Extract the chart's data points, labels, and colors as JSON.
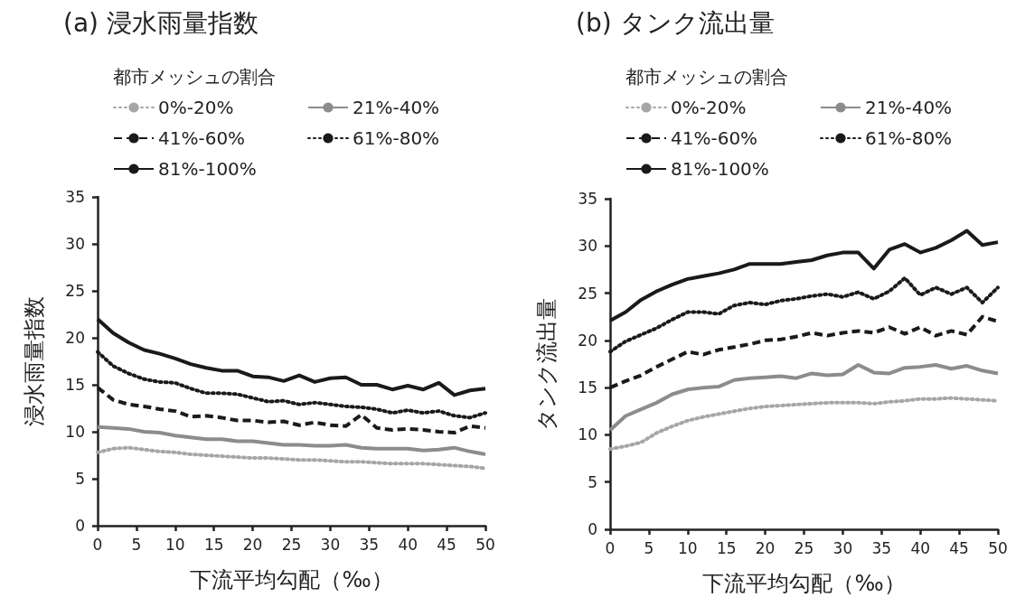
{
  "chart_data": [
    {
      "type": "line",
      "title": "(a) 浸水雨量指数",
      "xlabel": "下流平均勾配（‰）",
      "ylabel": "浸水雨量指数",
      "legend_title": "都市メッシュの割合",
      "legend": "top left",
      "grid": false,
      "marker": "none",
      "x": [
        0,
        2,
        4,
        6,
        8,
        10,
        12,
        14,
        16,
        18,
        20,
        22,
        24,
        26,
        28,
        30,
        32,
        34,
        36,
        38,
        40,
        42,
        44,
        46,
        48,
        50
      ],
      "xlim": [
        0,
        50
      ],
      "xticks": [
        0,
        5,
        10,
        15,
        20,
        25,
        30,
        35,
        40,
        45,
        50
      ],
      "ylim": [
        0,
        35
      ],
      "yticks": [
        0,
        5,
        10,
        15,
        20,
        25,
        30,
        35
      ],
      "series": [
        {
          "name": "0%-20%",
          "color": "#a6a6a6",
          "line_style": "dotted",
          "values": [
            7.8,
            8.2,
            8.3,
            8.1,
            7.9,
            7.8,
            7.6,
            7.5,
            7.4,
            7.3,
            7.2,
            7.2,
            7.1,
            7.0,
            7.0,
            6.9,
            6.8,
            6.8,
            6.7,
            6.6,
            6.6,
            6.6,
            6.5,
            6.4,
            6.3,
            6.1
          ]
        },
        {
          "name": "21%-40%",
          "color": "#8c8c8c",
          "line_style": "solid",
          "values": [
            10.5,
            10.4,
            10.3,
            10.0,
            9.9,
            9.6,
            9.4,
            9.2,
            9.2,
            9.0,
            9.0,
            8.8,
            8.6,
            8.6,
            8.5,
            8.5,
            8.6,
            8.3,
            8.2,
            8.2,
            8.2,
            8.0,
            8.1,
            8.3,
            7.9,
            7.6
          ]
        },
        {
          "name": "41%-60%",
          "color": "#1a1a1a",
          "line_style": "dashed",
          "values": [
            14.7,
            13.4,
            12.9,
            12.7,
            12.4,
            12.2,
            11.6,
            11.7,
            11.5,
            11.2,
            11.2,
            11.0,
            11.1,
            10.7,
            11.0,
            10.7,
            10.6,
            11.8,
            10.4,
            10.2,
            10.3,
            10.2,
            10.0,
            9.9,
            10.6,
            10.4
          ]
        },
        {
          "name": "61%-80%",
          "color": "#1a1a1a",
          "line_style": "dotted",
          "values": [
            18.5,
            17.0,
            16.2,
            15.6,
            15.3,
            15.2,
            14.6,
            14.1,
            14.1,
            14.0,
            13.6,
            13.2,
            13.3,
            12.9,
            13.1,
            12.9,
            12.7,
            12.6,
            12.4,
            12.0,
            12.3,
            12.0,
            12.2,
            11.7,
            11.5,
            12.0
          ]
        },
        {
          "name": "81%-100%",
          "color": "#1a1a1a",
          "line_style": "solid",
          "values": [
            22.0,
            20.5,
            19.5,
            18.7,
            18.3,
            17.8,
            17.2,
            16.8,
            16.5,
            16.5,
            15.9,
            15.8,
            15.4,
            16.0,
            15.3,
            15.7,
            15.8,
            15.0,
            15.0,
            14.5,
            14.9,
            14.5,
            15.2,
            13.9,
            14.4,
            14.6
          ]
        }
      ]
    },
    {
      "type": "line",
      "title": "(b) タンク流出量",
      "xlabel": "下流平均勾配（‰）",
      "ylabel": "タンク流出量",
      "legend_title": "都市メッシュの割合",
      "legend": "top left",
      "grid": false,
      "marker": "none",
      "x": [
        0,
        2,
        4,
        6,
        8,
        10,
        12,
        14,
        16,
        18,
        20,
        22,
        24,
        26,
        28,
        30,
        32,
        34,
        36,
        38,
        40,
        42,
        44,
        46,
        48,
        50
      ],
      "xlim": [
        0,
        50
      ],
      "xticks": [
        0,
        5,
        10,
        15,
        20,
        25,
        30,
        35,
        40,
        45,
        50
      ],
      "ylim": [
        0,
        35
      ],
      "yticks": [
        0,
        5,
        10,
        15,
        20,
        25,
        30,
        35
      ],
      "series": [
        {
          "name": "0%-20%",
          "color": "#a6a6a6",
          "line_style": "dotted",
          "values": [
            8.5,
            8.8,
            9.2,
            10.2,
            10.9,
            11.5,
            11.9,
            12.2,
            12.5,
            12.8,
            13.0,
            13.1,
            13.2,
            13.3,
            13.4,
            13.4,
            13.4,
            13.3,
            13.5,
            13.6,
            13.8,
            13.8,
            13.9,
            13.8,
            13.7,
            13.6
          ]
        },
        {
          "name": "21%-40%",
          "color": "#8c8c8c",
          "line_style": "solid",
          "values": [
            10.5,
            12.0,
            12.7,
            13.4,
            14.3,
            14.8,
            15.0,
            15.1,
            15.8,
            16.0,
            16.1,
            16.2,
            16.0,
            16.5,
            16.3,
            16.4,
            17.4,
            16.6,
            16.5,
            17.1,
            17.2,
            17.4,
            17.0,
            17.3,
            16.8,
            16.5
          ]
        },
        {
          "name": "41%-60%",
          "color": "#1a1a1a",
          "line_style": "dashed",
          "values": [
            15.0,
            15.7,
            16.3,
            17.2,
            18.0,
            18.8,
            18.5,
            19.0,
            19.3,
            19.6,
            20.0,
            20.1,
            20.4,
            20.8,
            20.5,
            20.8,
            21.0,
            20.8,
            21.4,
            20.7,
            21.4,
            20.5,
            21.0,
            20.6,
            22.5,
            22.0
          ]
        },
        {
          "name": "61%-80%",
          "color": "#1a1a1a",
          "line_style": "dotted",
          "values": [
            18.8,
            19.9,
            20.6,
            21.3,
            22.2,
            23.0,
            23.0,
            22.8,
            23.7,
            24.0,
            23.8,
            24.2,
            24.4,
            24.7,
            24.9,
            24.6,
            25.1,
            24.4,
            25.2,
            26.6,
            24.8,
            25.6,
            24.9,
            25.6,
            24.0,
            25.6
          ]
        },
        {
          "name": "81%-100%",
          "color": "#1a1a1a",
          "line_style": "solid",
          "values": [
            22.1,
            23.0,
            24.3,
            25.2,
            25.9,
            26.5,
            26.8,
            27.1,
            27.5,
            28.1,
            28.1,
            28.1,
            28.3,
            28.5,
            29.0,
            29.3,
            29.3,
            27.6,
            29.6,
            30.2,
            29.3,
            29.8,
            30.6,
            31.6,
            30.1,
            30.4
          ]
        }
      ]
    }
  ]
}
